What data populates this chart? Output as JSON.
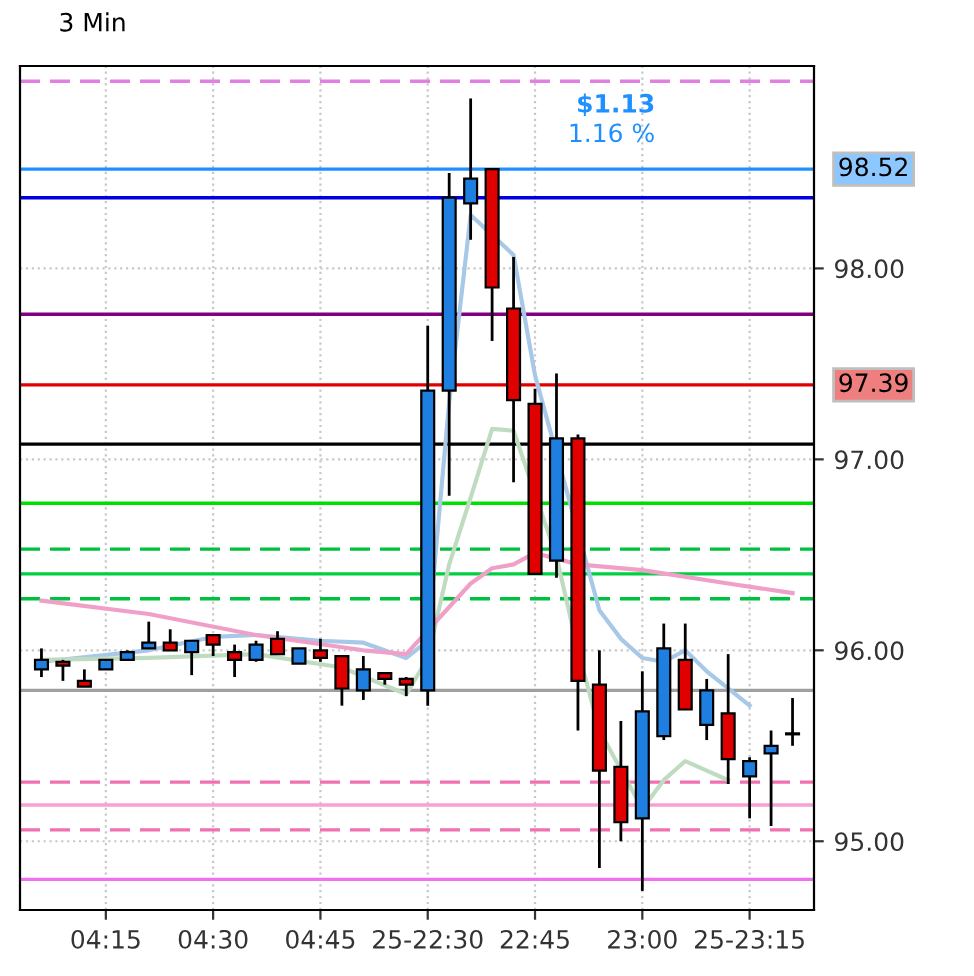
{
  "chart_data": {
    "type": "candlestick",
    "title": "3 Min",
    "categories": [
      null,
      null,
      null,
      "04:15",
      null,
      null,
      null,
      null,
      "04:30",
      null,
      null,
      null,
      null,
      "04:45",
      null,
      null,
      null,
      null,
      "25-22:30",
      null,
      null,
      null,
      null,
      "22:45",
      null,
      null,
      null,
      null,
      "23:00",
      null,
      null,
      null,
      null,
      "25-23:15",
      null,
      null
    ],
    "ohlc": [
      [
        95.9,
        96.01,
        95.86,
        95.95
      ],
      [
        95.94,
        95.95,
        95.84,
        95.92
      ],
      [
        95.84,
        95.9,
        95.81,
        95.81
      ],
      [
        95.9,
        95.95,
        95.9,
        95.95
      ],
      [
        95.95,
        96.0,
        95.95,
        95.99
      ],
      [
        96.01,
        96.15,
        96.01,
        96.04
      ],
      [
        96.04,
        96.11,
        96.0,
        96.0
      ],
      [
        95.99,
        96.05,
        95.87,
        96.05
      ],
      [
        96.08,
        96.08,
        95.97,
        96.03
      ],
      [
        95.99,
        96.03,
        95.86,
        95.95
      ],
      [
        95.95,
        96.05,
        95.94,
        96.03
      ],
      [
        96.06,
        96.1,
        95.98,
        95.98
      ],
      [
        95.93,
        96.01,
        95.93,
        96.01
      ],
      [
        96.0,
        96.06,
        95.94,
        95.96
      ],
      [
        95.97,
        95.97,
        95.71,
        95.8
      ],
      [
        95.79,
        95.97,
        95.74,
        95.9
      ],
      [
        95.88,
        95.88,
        95.82,
        95.85
      ],
      [
        95.85,
        95.86,
        95.76,
        95.82
      ],
      [
        95.79,
        97.7,
        95.71,
        97.36
      ],
      [
        97.36,
        98.5,
        96.81,
        98.37
      ],
      [
        98.34,
        98.89,
        98.15,
        98.47
      ],
      [
        98.52,
        98.52,
        97.62,
        97.9
      ],
      [
        97.79,
        98.06,
        96.88,
        97.31
      ],
      [
        97.29,
        97.37,
        96.4,
        96.4
      ],
      [
        96.47,
        97.45,
        96.38,
        97.11
      ],
      [
        97.11,
        97.13,
        95.58,
        95.84
      ],
      [
        95.82,
        96.0,
        94.86,
        95.37
      ],
      [
        95.39,
        95.63,
        95.0,
        95.1
      ],
      [
        95.12,
        95.89,
        94.74,
        95.68
      ],
      [
        95.55,
        96.14,
        95.53,
        96.01
      ],
      [
        95.95,
        96.14,
        95.69,
        95.69
      ],
      [
        95.61,
        95.85,
        95.53,
        95.79
      ],
      [
        95.67,
        95.98,
        95.3,
        95.43
      ],
      [
        95.34,
        95.44,
        95.12,
        95.42
      ],
      [
        95.46,
        95.58,
        95.08,
        95.5
      ],
      [
        95.56,
        95.75,
        95.5,
        95.56
      ]
    ],
    "colors": [
      "#1e7fe0",
      "#e00000",
      "#e00000",
      "#1e7fe0",
      "#1e7fe0",
      "#1e7fe0",
      "#e00000",
      "#1e7fe0",
      "#e00000",
      "#e00000",
      "#1e7fe0",
      "#e00000",
      "#1e7fe0",
      "#e00000",
      "#e00000",
      "#1e7fe0",
      "#e00000",
      "#e00000",
      "#1e7fe0",
      "#1e7fe0",
      "#1e7fe0",
      "#e00000",
      "#e00000",
      "#e00000",
      "#1e7fe0",
      "#e00000",
      "#e00000",
      "#e00000",
      "#1e7fe0",
      "#1e7fe0",
      "#e00000",
      "#1e7fe0",
      "#e00000",
      "#1e7fe0",
      "#1e7fe0",
      "#e00000"
    ],
    "series": [
      {
        "type": "line",
        "color": "#a8c8e8",
        "values": [
          95.94,
          null,
          null,
          null,
          null,
          96.0,
          null,
          null,
          96.07,
          null,
          96.08,
          null,
          null,
          96.05,
          null,
          96.04,
          null,
          95.96,
          96.05,
          97.3,
          98.28,
          null,
          98.07,
          97.44,
          null,
          null,
          96.21,
          96.06,
          95.96,
          95.94,
          96.0,
          95.89,
          95.8,
          95.71,
          null,
          null
        ]
      },
      {
        "type": "line",
        "color": "#c0dcc0",
        "values": [
          95.95,
          null,
          null,
          null,
          null,
          95.96,
          null,
          null,
          null,
          null,
          95.98,
          null,
          null,
          null,
          95.91,
          null,
          null,
          95.77,
          95.96,
          96.45,
          96.8,
          97.16,
          97.15,
          null,
          96.49,
          96.0,
          95.58,
          null,
          95.17,
          95.32,
          95.42,
          95.37,
          95.32,
          null,
          null,
          null
        ]
      },
      {
        "type": "line",
        "color": "#f0a0c8",
        "values": [
          96.26,
          null,
          null,
          null,
          null,
          96.19,
          null,
          null,
          null,
          null,
          96.08,
          null,
          null,
          null,
          null,
          96.0,
          null,
          95.98,
          null,
          null,
          96.35,
          96.43,
          96.45,
          96.51,
          null,
          96.45,
          null,
          null,
          96.42,
          null,
          null,
          null,
          96.35,
          null,
          null,
          96.3
        ]
      }
    ],
    "ylim": [
      94.64,
      99.06
    ],
    "yticks": [
      {
        "value": 95,
        "label": "95.00"
      },
      {
        "value": 96,
        "label": "96.00"
      },
      {
        "value": 97,
        "label": "97.00"
      },
      {
        "value": 98,
        "label": "98.00"
      }
    ],
    "ref_lines": [
      {
        "axis": "y",
        "value": 98.98,
        "color": "#e080e0",
        "line_style": "dashed"
      },
      {
        "axis": "y",
        "value": 98.52,
        "label": "98.52",
        "color": "#1e90ff",
        "line_style": "solid"
      },
      {
        "axis": "y",
        "value": 98.37,
        "color": "#0000e0",
        "line_style": "solid"
      },
      {
        "axis": "y",
        "value": 97.76,
        "color": "#800080",
        "line_style": "solid"
      },
      {
        "axis": "y",
        "value": 97.39,
        "label": "97.39",
        "color": "#e00000",
        "line_style": "solid"
      },
      {
        "axis": "y",
        "value": 97.08,
        "color": "#000000",
        "line_style": "solid"
      },
      {
        "axis": "y",
        "value": 96.77,
        "color": "#00e000",
        "line_style": "solid"
      },
      {
        "axis": "y",
        "value": 96.53,
        "color": "#00c040",
        "line_style": "dashed"
      },
      {
        "axis": "y",
        "value": 96.4,
        "color": "#00d040",
        "line_style": "solid"
      },
      {
        "axis": "y",
        "value": 96.27,
        "color": "#00c040",
        "line_style": "dashed"
      },
      {
        "axis": "y",
        "value": 95.79,
        "color": "#a0a0a0",
        "line_style": "solid"
      },
      {
        "axis": "y",
        "value": 95.31,
        "color": "#f070b0",
        "line_style": "dashed"
      },
      {
        "axis": "y",
        "value": 95.19,
        "color": "#f8a0d0",
        "line_style": "solid"
      },
      {
        "axis": "y",
        "value": 95.06,
        "color": "#f070b0",
        "line_style": "dashed"
      },
      {
        "axis": "y",
        "value": 94.8,
        "color": "#f070f0",
        "line_style": "solid"
      }
    ],
    "annotations": [
      "$1.13",
      "1.16 %"
    ],
    "grid": true
  }
}
